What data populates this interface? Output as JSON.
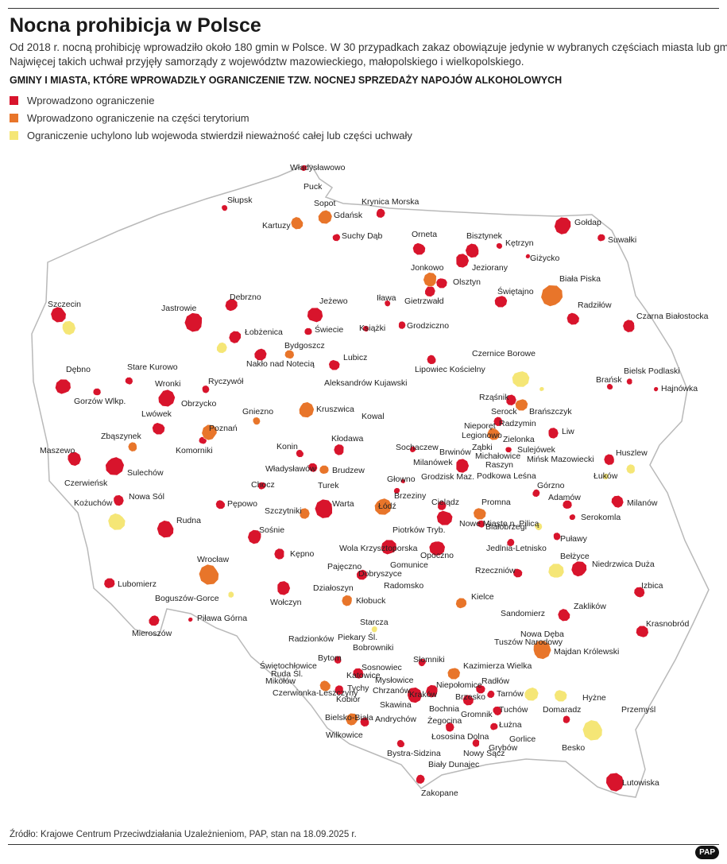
{
  "title": "Nocna prohibicja w Polsce",
  "subtitle": [
    "Od 2018 r. nocną prohibicję wprowadziło około 180 gmin w Polsce. W 30 przypadkach zakaz obowiązuje jedynie w wybranych częściach miasta lub gminy.",
    "Najwięcej takich uchwał przyjęły samorządy z województw mazowieckiego, małopolskiego i wielkopolskiego."
  ],
  "heading": "GMINY I MIASTA, KTÓRE WPROWADZIŁY OGRANICZENIE TZW. NOCNEJ SPRZEDAŻY NAPOJÓW ALKOHOLOWYCH",
  "legend": [
    {
      "label": "Wprowadzono ograniczenie",
      "color": "#d8142c",
      "places": [
        "Władysławowo",
        "Puck",
        "Słupsk",
        "Krynica Morska",
        "Suchy Dąb",
        "Orneta",
        "Bisztynek",
        "Gołdap",
        "Suwałki",
        "Kętrzyn",
        "Jeziorany",
        "Giżycko",
        "Olsztyn",
        "Szczecin",
        "Jastrowie",
        "Debrzno",
        "Jeżewo",
        "Iława",
        "Gietrzwałd",
        "Świętajno",
        "Radziłów",
        "Czarna Białostocka",
        "Łobżenica",
        "Świecie",
        "Książki",
        "Grodziczno",
        "Nakło nad Notecią",
        "Lubicz",
        "Czernice Borowe",
        "Lipowiec Kościelny",
        "Dębno",
        "Stare Kurowo",
        "Ryczywół",
        "Wronki",
        "Aleksandrów Kujawski",
        "Brańsk",
        "Bielsk Podlaski",
        "Hajnówka",
        "Gorzów Wlkp.",
        "Obrzycko",
        "Rząśnik",
        "Kowal",
        "Lwówek",
        "Serock",
        "Nieporęt",
        "Legionowo",
        "Zielonka",
        "Liw",
        "Ząbki",
        "Sulejówek",
        "Konin",
        "Kłodawa",
        "Sochaczew",
        "Komorniki",
        "Maszewo",
        "Brwinów",
        "Michałowice",
        "Mińsk Mazowiecki",
        "Huszlew",
        "Milanówek",
        "Raszyn",
        "Władysławów",
        "Grodzisk Maz.",
        "Sulechów",
        "Podkowa Leśna",
        "Łuków",
        "Czerwieńsk",
        "Chocz",
        "Głowno",
        "Nowa Sól",
        "Górzno",
        "Kożuchów",
        "Pępowo",
        "Warta",
        "Brzeziny",
        "Adamów",
        "Milanów",
        "Cielądz",
        "Serokomla",
        "Nowe Miasto n. Pilicą",
        "Rudna",
        "Sośnie",
        "Piotrków Tryb.",
        "Białobrzegi",
        "Puławy",
        "Jedlnia-Letnisko",
        "Opoczno",
        "Wola Krzysztoporska",
        "Kępno",
        "Niedrzwica Duża",
        "Bełżyce",
        "Gomunice",
        "Pajęczno",
        "Dobryszyce",
        "Rzeczniów",
        "Radomsko",
        "Działoszyn",
        "Lubomierz",
        "Izbica",
        "Wołczyn",
        "Boguszów-Gorce",
        "Sandomierz",
        "Zaklików",
        "Starcza",
        "Piława Górna",
        "Krasnobród",
        "Mieroszów",
        "Piekary Śl.",
        "Radzionków",
        "Bobrowniki",
        "Bytom",
        "Słomniki",
        "Świętochłowice",
        "Sosnowiec",
        "Ruda Śl.",
        "Katowice",
        "Radłów",
        "Mysłowice",
        "Niepołomice",
        "Tychy",
        "Chrzanów",
        "Kraków",
        "Tarnów",
        "Hyżne",
        "Brzesko",
        "Kobiór",
        "Skawina",
        "Bochnia",
        "Tuchów",
        "Domaradz",
        "Przemyśl",
        "Gromnik",
        "Andrychów",
        "Żegocina",
        "Łużna",
        "Wilkowice",
        "Łososina Dolna",
        "Gorlice",
        "Besko",
        "Bystra-Sidzina",
        "Grybów",
        "Nowy Sącz",
        "Biały Dunajec",
        "Lutowiska",
        "Zakopane"
      ]
    },
    {
      "label": "Wprowadzono ograniczenie na części terytorium",
      "color": "#e8752a",
      "places": [
        "Sopot",
        "Gdańsk",
        "Kartuzy",
        "Jonkowo",
        "Biała Piska",
        "Bydgoszcz",
        "Gniezno",
        "Kruszwica",
        "Brańszczyk",
        "Radzymin",
        "Zbąszynek",
        "Poznań",
        "Brudzew",
        "Turek",
        "Szczytniki",
        "Łódź",
        "Promna",
        "Wrocław",
        "Kłobuck",
        "Kielce",
        "Nowa Dęba",
        "Tuszów Narodowy",
        "Majdan Królewski",
        "Kazimierza Wielka",
        "Mikołów",
        "Czerwionka-Leszczyny",
        "Bielsko-Biała"
      ]
    },
    {
      "label": "Ograniczenie uchylono lub wojewoda stwierdził nieważność całej lub części uchwały",
      "color": "#f5e676"
    }
  ],
  "source": "Źródło: Krajowe Centrum Przeciwdziałania Uzależnieniom, PAP, stan na 18.09.2025 r.",
  "logo": "PAP"
}
